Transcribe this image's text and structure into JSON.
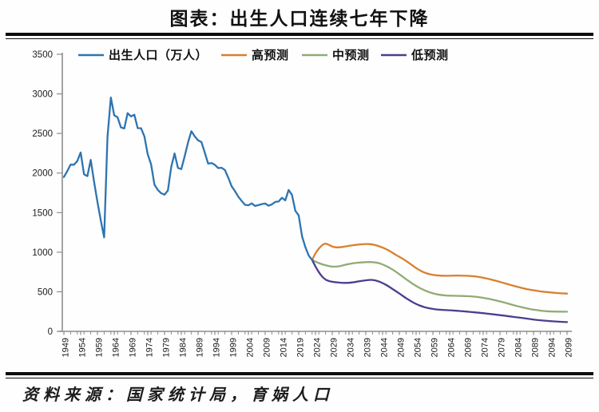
{
  "page": {
    "title": "图表：出生人口连续七年下降",
    "source": "资料来源：国家统计局，育娲人口"
  },
  "legend": {
    "items": [
      {
        "label": "出生人口（万人）",
        "color": "#2E74B0"
      },
      {
        "label": "高预测",
        "color": "#D9802E"
      },
      {
        "label": "中预测",
        "color": "#8FAC74"
      },
      {
        "label": "低预测",
        "color": "#4A3F8F"
      }
    ]
  },
  "chart_data": {
    "type": "line",
    "title": "图表：出生人口连续七年下降",
    "xlabel": "",
    "ylabel": "出生人口（万人）",
    "unit": "万人",
    "ylim": [
      0,
      3500
    ],
    "y_ticks": [
      0,
      500,
      1000,
      1500,
      2000,
      2500,
      3000,
      3500
    ],
    "x_range": [
      1949,
      2099
    ],
    "x_tick_step": 5,
    "x_tick_labels": [
      "1949",
      "1954",
      "1959",
      "1964",
      "1969",
      "1974",
      "1979",
      "1984",
      "1989",
      "1994",
      "1999",
      "2004",
      "2009",
      "2014",
      "2019",
      "2024",
      "2029",
      "2034",
      "2039",
      "2044",
      "2049",
      "2054",
      "2059",
      "2064",
      "2069",
      "2074",
      "2079",
      "2084",
      "2089",
      "2094",
      "2099"
    ],
    "grid": false,
    "legend_position": "top",
    "axis_color": "#8c8c8c",
    "series": [
      {
        "id": "historical",
        "name": "出生人口（万人）",
        "color": "#2E74B0",
        "smooth": false,
        "points": [
          [
            1949,
            1950
          ],
          [
            1950,
            2023
          ],
          [
            1951,
            2107
          ],
          [
            1952,
            2105
          ],
          [
            1953,
            2151
          ],
          [
            1954,
            2260
          ],
          [
            1955,
            1984
          ],
          [
            1956,
            1961
          ],
          [
            1957,
            2167
          ],
          [
            1958,
            1889
          ],
          [
            1959,
            1635
          ],
          [
            1960,
            1402
          ],
          [
            1961,
            1187
          ],
          [
            1962,
            2460
          ],
          [
            1963,
            2954
          ],
          [
            1964,
            2729
          ],
          [
            1965,
            2704
          ],
          [
            1966,
            2577
          ],
          [
            1967,
            2563
          ],
          [
            1968,
            2757
          ],
          [
            1969,
            2715
          ],
          [
            1970,
            2736
          ],
          [
            1971,
            2567
          ],
          [
            1972,
            2566
          ],
          [
            1973,
            2463
          ],
          [
            1974,
            2235
          ],
          [
            1975,
            2109
          ],
          [
            1976,
            1853
          ],
          [
            1977,
            1786
          ],
          [
            1978,
            1745
          ],
          [
            1979,
            1727
          ],
          [
            1980,
            1779
          ],
          [
            1981,
            2078
          ],
          [
            1982,
            2247
          ],
          [
            1983,
            2065
          ],
          [
            1984,
            2050
          ],
          [
            1985,
            2211
          ],
          [
            1986,
            2384
          ],
          [
            1987,
            2529
          ],
          [
            1988,
            2464
          ],
          [
            1989,
            2414
          ],
          [
            1990,
            2391
          ],
          [
            1991,
            2258
          ],
          [
            1992,
            2119
          ],
          [
            1993,
            2126
          ],
          [
            1994,
            2104
          ],
          [
            1995,
            2063
          ],
          [
            1996,
            2067
          ],
          [
            1997,
            2038
          ],
          [
            1998,
            1942
          ],
          [
            1999,
            1834
          ],
          [
            2000,
            1771
          ],
          [
            2001,
            1702
          ],
          [
            2002,
            1647
          ],
          [
            2003,
            1599
          ],
          [
            2004,
            1593
          ],
          [
            2005,
            1617
          ],
          [
            2006,
            1585
          ],
          [
            2007,
            1595
          ],
          [
            2008,
            1608
          ],
          [
            2009,
            1615
          ],
          [
            2010,
            1588
          ],
          [
            2011,
            1604
          ],
          [
            2012,
            1635
          ],
          [
            2013,
            1640
          ],
          [
            2014,
            1687
          ],
          [
            2015,
            1655
          ],
          [
            2016,
            1786
          ],
          [
            2017,
            1723
          ],
          [
            2018,
            1523
          ],
          [
            2019,
            1465
          ],
          [
            2020,
            1200
          ],
          [
            2021,
            1062
          ],
          [
            2022,
            956
          ],
          [
            2023,
            902
          ]
        ]
      },
      {
        "id": "forecast-high",
        "name": "高预测",
        "color": "#D9802E",
        "smooth": true,
        "points": [
          [
            2023,
            902
          ],
          [
            2024,
            985
          ],
          [
            2025,
            1045
          ],
          [
            2026,
            1088
          ],
          [
            2027,
            1108
          ],
          [
            2028,
            1092
          ],
          [
            2029,
            1072
          ],
          [
            2030,
            1062
          ],
          [
            2031,
            1062
          ],
          [
            2032,
            1066
          ],
          [
            2034,
            1080
          ],
          [
            2036,
            1092
          ],
          [
            2038,
            1100
          ],
          [
            2040,
            1102
          ],
          [
            2042,
            1088
          ],
          [
            2044,
            1058
          ],
          [
            2046,
            1018
          ],
          [
            2048,
            965
          ],
          [
            2051,
            890
          ],
          [
            2054,
            800
          ],
          [
            2056,
            752
          ],
          [
            2058,
            722
          ],
          [
            2060,
            708
          ],
          [
            2063,
            702
          ],
          [
            2066,
            705
          ],
          [
            2069,
            702
          ],
          [
            2072,
            692
          ],
          [
            2075,
            668
          ],
          [
            2078,
            636
          ],
          [
            2081,
            600
          ],
          [
            2084,
            565
          ],
          [
            2087,
            534
          ],
          [
            2090,
            512
          ],
          [
            2093,
            496
          ],
          [
            2096,
            484
          ],
          [
            2099,
            477
          ]
        ]
      },
      {
        "id": "forecast-medium",
        "name": "中预测",
        "color": "#8FAC74",
        "smooth": true,
        "points": [
          [
            2023,
            902
          ],
          [
            2025,
            862
          ],
          [
            2027,
            835
          ],
          [
            2029,
            818
          ],
          [
            2031,
            822
          ],
          [
            2033,
            842
          ],
          [
            2035,
            858
          ],
          [
            2037,
            868
          ],
          [
            2039,
            874
          ],
          [
            2041,
            874
          ],
          [
            2043,
            860
          ],
          [
            2045,
            826
          ],
          [
            2047,
            780
          ],
          [
            2049,
            722
          ],
          [
            2051,
            660
          ],
          [
            2053,
            600
          ],
          [
            2055,
            550
          ],
          [
            2057,
            510
          ],
          [
            2059,
            480
          ],
          [
            2061,
            462
          ],
          [
            2063,
            453
          ],
          [
            2065,
            450
          ],
          [
            2067,
            448
          ],
          [
            2069,
            445
          ],
          [
            2071,
            440
          ],
          [
            2073,
            430
          ],
          [
            2075,
            416
          ],
          [
            2077,
            398
          ],
          [
            2079,
            378
          ],
          [
            2081,
            356
          ],
          [
            2083,
            332
          ],
          [
            2085,
            310
          ],
          [
            2087,
            290
          ],
          [
            2089,
            274
          ],
          [
            2091,
            262
          ],
          [
            2093,
            254
          ],
          [
            2095,
            250
          ],
          [
            2097,
            249
          ],
          [
            2099,
            248
          ]
        ]
      },
      {
        "id": "forecast-low",
        "name": "低预测",
        "color": "#4A3F8F",
        "smooth": true,
        "points": [
          [
            2023,
            902
          ],
          [
            2024,
            820
          ],
          [
            2025,
            748
          ],
          [
            2026,
            692
          ],
          [
            2027,
            655
          ],
          [
            2028,
            636
          ],
          [
            2029,
            626
          ],
          [
            2031,
            616
          ],
          [
            2033,
            612
          ],
          [
            2035,
            618
          ],
          [
            2037,
            632
          ],
          [
            2039,
            645
          ],
          [
            2041,
            650
          ],
          [
            2043,
            628
          ],
          [
            2045,
            588
          ],
          [
            2047,
            535
          ],
          [
            2049,
            478
          ],
          [
            2051,
            420
          ],
          [
            2053,
            368
          ],
          [
            2055,
            328
          ],
          [
            2057,
            300
          ],
          [
            2059,
            283
          ],
          [
            2061,
            273
          ],
          [
            2063,
            268
          ],
          [
            2065,
            263
          ],
          [
            2067,
            257
          ],
          [
            2070,
            246
          ],
          [
            2073,
            234
          ],
          [
            2076,
            220
          ],
          [
            2079,
            205
          ],
          [
            2082,
            189
          ],
          [
            2085,
            172
          ],
          [
            2088,
            155
          ],
          [
            2091,
            140
          ],
          [
            2094,
            129
          ],
          [
            2097,
            121
          ],
          [
            2099,
            117
          ]
        ]
      }
    ]
  }
}
